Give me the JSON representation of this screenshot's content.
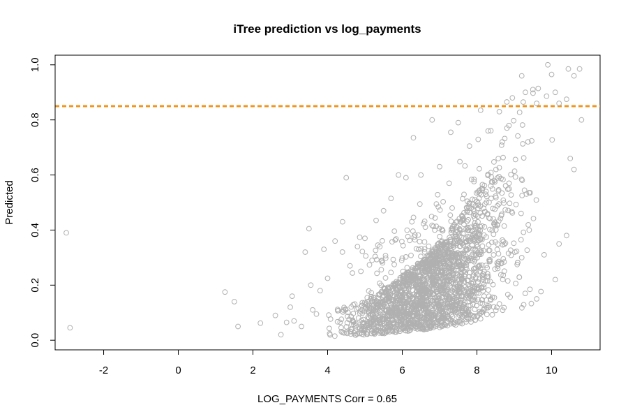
{
  "chart_data": {
    "type": "scatter",
    "title": "iTree prediction vs log_payments",
    "xlabel": "LOG_PAYMENTS Corr = 0.65",
    "ylabel": "Predicted",
    "xlim": [
      -3.3,
      11.3
    ],
    "ylim": [
      -0.035,
      1.035
    ],
    "x_ticks": [
      -2,
      0,
      2,
      4,
      6,
      8,
      10
    ],
    "x_tick_labels": [
      "-2",
      "0",
      "2",
      "4",
      "6",
      "8",
      "10"
    ],
    "y_ticks": [
      0.0,
      0.2,
      0.4,
      0.6,
      0.8,
      1.0
    ],
    "y_tick_labels": [
      "0.0",
      "0.2",
      "0.4",
      "0.6",
      "0.8",
      "1.0"
    ],
    "grid": false,
    "legend": "none",
    "point_color": "#b0b0b0",
    "reference_line": {
      "orientation": "horizontal",
      "y": 0.85,
      "color": "#f0961e",
      "style": "dashed"
    },
    "points": [
      [
        -3.0,
        0.39
      ],
      [
        -2.9,
        0.045
      ],
      [
        1.25,
        0.175
      ],
      [
        1.5,
        0.14
      ],
      [
        1.6,
        0.05
      ],
      [
        2.2,
        0.062
      ],
      [
        2.6,
        0.09
      ],
      [
        2.75,
        0.02
      ],
      [
        2.9,
        0.065
      ],
      [
        3.0,
        0.12
      ],
      [
        3.05,
        0.16
      ],
      [
        3.1,
        0.07
      ],
      [
        3.3,
        0.05
      ],
      [
        3.4,
        0.32
      ],
      [
        3.5,
        0.405
      ],
      [
        3.55,
        0.2
      ],
      [
        3.6,
        0.11
      ],
      [
        3.7,
        0.095
      ],
      [
        3.8,
        0.18
      ],
      [
        3.9,
        0.33
      ],
      [
        4.0,
        0.225
      ],
      [
        4.2,
        0.36
      ],
      [
        4.4,
        0.43
      ],
      [
        4.5,
        0.59
      ],
      [
        4.6,
        0.27
      ],
      [
        4.8,
        0.34
      ],
      [
        5.0,
        0.37
      ],
      [
        5.3,
        0.435
      ],
      [
        5.5,
        0.47
      ],
      [
        5.7,
        0.515
      ],
      [
        5.9,
        0.6
      ],
      [
        6.1,
        0.59
      ],
      [
        6.3,
        0.735
      ],
      [
        6.5,
        0.6
      ],
      [
        6.8,
        0.8
      ],
      [
        7.0,
        0.63
      ],
      [
        7.3,
        0.755
      ],
      [
        7.5,
        0.79
      ],
      [
        7.8,
        0.705
      ],
      [
        8.1,
        0.835
      ],
      [
        8.3,
        0.76
      ],
      [
        8.6,
        0.83
      ],
      [
        8.8,
        0.865
      ],
      [
        8.95,
        0.88
      ],
      [
        9.2,
        0.96
      ],
      [
        9.3,
        0.9
      ],
      [
        9.5,
        0.91
      ],
      [
        9.6,
        0.86
      ],
      [
        9.9,
        1.0
      ],
      [
        10.0,
        0.965
      ],
      [
        10.1,
        0.9
      ],
      [
        10.2,
        0.86
      ],
      [
        10.4,
        0.875
      ],
      [
        10.45,
        0.985
      ],
      [
        10.6,
        0.96
      ],
      [
        10.75,
        0.985
      ],
      [
        10.8,
        0.8
      ],
      [
        10.6,
        0.62
      ],
      [
        10.5,
        0.66
      ],
      [
        10.4,
        0.38
      ],
      [
        10.2,
        0.35
      ],
      [
        10.1,
        0.22
      ],
      [
        9.8,
        0.31
      ],
      [
        9.6,
        0.15
      ],
      [
        9.4,
        0.4
      ],
      [
        9.2,
        0.3
      ]
    ]
  }
}
